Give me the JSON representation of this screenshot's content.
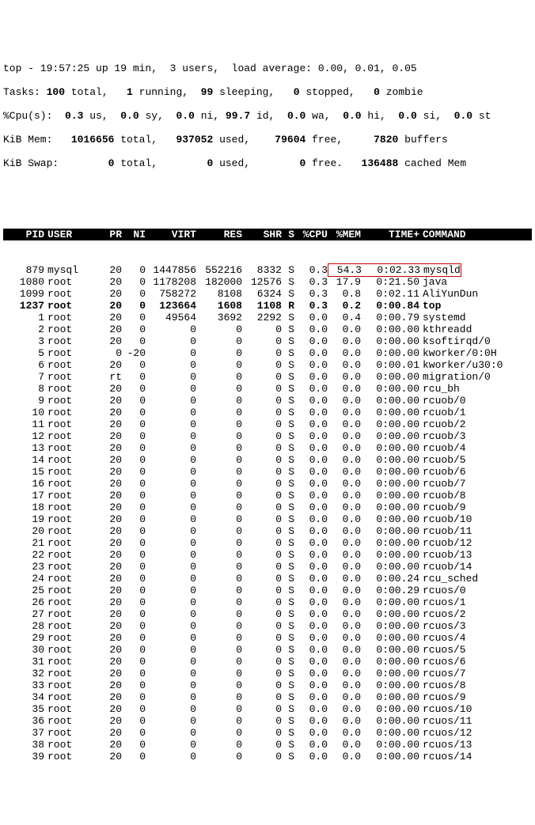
{
  "summary": {
    "line1_a": "top - 19:57:25 up 19 min,  3 users,  load average: 0.00, 0.01, 0.05",
    "tasks_label": "Tasks:",
    "tasks_total": " 100 ",
    "tasks_total_l": "total,   ",
    "tasks_run": "1 ",
    "tasks_run_l": "running,  ",
    "tasks_sleep": "99 ",
    "tasks_sleep_l": "sleeping,   ",
    "tasks_stop": "0 ",
    "tasks_stop_l": "stopped,   ",
    "tasks_zomb": "0 ",
    "tasks_zomb_l": "zombie",
    "cpu_label": "%Cpu(s):  ",
    "cpu_us": "0.3 ",
    "cpu_us_l": "us,  ",
    "cpu_sy": "0.0 ",
    "cpu_sy_l": "sy,  ",
    "cpu_ni": "0.0 ",
    "cpu_ni_l": "ni, ",
    "cpu_id": "99.7 ",
    "cpu_id_l": "id,  ",
    "cpu_wa": "0.0 ",
    "cpu_wa_l": "wa,  ",
    "cpu_hi": "0.0 ",
    "cpu_hi_l": "hi,  ",
    "cpu_si": "0.0 ",
    "cpu_si_l": "si,  ",
    "cpu_st": "0.0 ",
    "cpu_st_l": "st",
    "mem_label": "KiB Mem:   ",
    "mem_total": "1016656 ",
    "mem_total_l": "total,   ",
    "mem_used": "937052 ",
    "mem_used_l": "used,    ",
    "mem_free": "79604 ",
    "mem_free_l": "free,     ",
    "mem_buf": "7820 ",
    "mem_buf_l": "buffers",
    "swap_label": "KiB Swap:        ",
    "swap_total": "0 ",
    "swap_total_l": "total,        ",
    "swap_used": "0 ",
    "swap_used_l": "used,        ",
    "swap_free": "0 ",
    "swap_free_l": "free.   ",
    "swap_cache": "136488 ",
    "swap_cache_l": "cached Mem"
  },
  "headers": {
    "pid": "PID",
    "user": "USER",
    "pr": "PR",
    "ni": "NI",
    "virt": "VIRT",
    "res": "RES",
    "shr": "SHR",
    "s": "S",
    "cpu": "%CPU",
    "mem": "%MEM",
    "time": "TIME+",
    "cmd": "COMMAND"
  },
  "highlight_row_index": 0,
  "processes": [
    {
      "pid": "879",
      "user": "mysql",
      "pr": "20",
      "ni": "0",
      "virt": "1447856",
      "res": "552216",
      "shr": "8332",
      "s": "S",
      "cpu": "0.3",
      "mem": "54.3",
      "time": "0:02.33",
      "cmd": "mysqld"
    },
    {
      "pid": "1080",
      "user": "root",
      "pr": "20",
      "ni": "0",
      "virt": "1178208",
      "res": "182000",
      "shr": "12576",
      "s": "S",
      "cpu": "0.3",
      "mem": "17.9",
      "time": "0:21.50",
      "cmd": "java"
    },
    {
      "pid": "1099",
      "user": "root",
      "pr": "20",
      "ni": "0",
      "virt": "758272",
      "res": "8108",
      "shr": "6324",
      "s": "S",
      "cpu": "0.3",
      "mem": "0.8",
      "time": "0:02.11",
      "cmd": "AliYunDun"
    },
    {
      "pid": "1237",
      "user": "root",
      "pr": "20",
      "ni": "0",
      "virt": "123664",
      "res": "1608",
      "shr": "1108",
      "s": "R",
      "cpu": "0.3",
      "mem": "0.2",
      "time": "0:00.84",
      "cmd": "top"
    },
    {
      "pid": "1",
      "user": "root",
      "pr": "20",
      "ni": "0",
      "virt": "49564",
      "res": "3692",
      "shr": "2292",
      "s": "S",
      "cpu": "0.0",
      "mem": "0.4",
      "time": "0:00.79",
      "cmd": "systemd"
    },
    {
      "pid": "2",
      "user": "root",
      "pr": "20",
      "ni": "0",
      "virt": "0",
      "res": "0",
      "shr": "0",
      "s": "S",
      "cpu": "0.0",
      "mem": "0.0",
      "time": "0:00.00",
      "cmd": "kthreadd"
    },
    {
      "pid": "3",
      "user": "root",
      "pr": "20",
      "ni": "0",
      "virt": "0",
      "res": "0",
      "shr": "0",
      "s": "S",
      "cpu": "0.0",
      "mem": "0.0",
      "time": "0:00.00",
      "cmd": "ksoftirqd/0"
    },
    {
      "pid": "5",
      "user": "root",
      "pr": "0",
      "ni": "-20",
      "virt": "0",
      "res": "0",
      "shr": "0",
      "s": "S",
      "cpu": "0.0",
      "mem": "0.0",
      "time": "0:00.00",
      "cmd": "kworker/0:0H"
    },
    {
      "pid": "6",
      "user": "root",
      "pr": "20",
      "ni": "0",
      "virt": "0",
      "res": "0",
      "shr": "0",
      "s": "S",
      "cpu": "0.0",
      "mem": "0.0",
      "time": "0:00.01",
      "cmd": "kworker/u30:0"
    },
    {
      "pid": "7",
      "user": "root",
      "pr": "rt",
      "ni": "0",
      "virt": "0",
      "res": "0",
      "shr": "0",
      "s": "S",
      "cpu": "0.0",
      "mem": "0.0",
      "time": "0:00.00",
      "cmd": "migration/0"
    },
    {
      "pid": "8",
      "user": "root",
      "pr": "20",
      "ni": "0",
      "virt": "0",
      "res": "0",
      "shr": "0",
      "s": "S",
      "cpu": "0.0",
      "mem": "0.0",
      "time": "0:00.00",
      "cmd": "rcu_bh"
    },
    {
      "pid": "9",
      "user": "root",
      "pr": "20",
      "ni": "0",
      "virt": "0",
      "res": "0",
      "shr": "0",
      "s": "S",
      "cpu": "0.0",
      "mem": "0.0",
      "time": "0:00.00",
      "cmd": "rcuob/0"
    },
    {
      "pid": "10",
      "user": "root",
      "pr": "20",
      "ni": "0",
      "virt": "0",
      "res": "0",
      "shr": "0",
      "s": "S",
      "cpu": "0.0",
      "mem": "0.0",
      "time": "0:00.00",
      "cmd": "rcuob/1"
    },
    {
      "pid": "11",
      "user": "root",
      "pr": "20",
      "ni": "0",
      "virt": "0",
      "res": "0",
      "shr": "0",
      "s": "S",
      "cpu": "0.0",
      "mem": "0.0",
      "time": "0:00.00",
      "cmd": "rcuob/2"
    },
    {
      "pid": "12",
      "user": "root",
      "pr": "20",
      "ni": "0",
      "virt": "0",
      "res": "0",
      "shr": "0",
      "s": "S",
      "cpu": "0.0",
      "mem": "0.0",
      "time": "0:00.00",
      "cmd": "rcuob/3"
    },
    {
      "pid": "13",
      "user": "root",
      "pr": "20",
      "ni": "0",
      "virt": "0",
      "res": "0",
      "shr": "0",
      "s": "S",
      "cpu": "0.0",
      "mem": "0.0",
      "time": "0:00.00",
      "cmd": "rcuob/4"
    },
    {
      "pid": "14",
      "user": "root",
      "pr": "20",
      "ni": "0",
      "virt": "0",
      "res": "0",
      "shr": "0",
      "s": "S",
      "cpu": "0.0",
      "mem": "0.0",
      "time": "0:00.00",
      "cmd": "rcuob/5"
    },
    {
      "pid": "15",
      "user": "root",
      "pr": "20",
      "ni": "0",
      "virt": "0",
      "res": "0",
      "shr": "0",
      "s": "S",
      "cpu": "0.0",
      "mem": "0.0",
      "time": "0:00.00",
      "cmd": "rcuob/6"
    },
    {
      "pid": "16",
      "user": "root",
      "pr": "20",
      "ni": "0",
      "virt": "0",
      "res": "0",
      "shr": "0",
      "s": "S",
      "cpu": "0.0",
      "mem": "0.0",
      "time": "0:00.00",
      "cmd": "rcuob/7"
    },
    {
      "pid": "17",
      "user": "root",
      "pr": "20",
      "ni": "0",
      "virt": "0",
      "res": "0",
      "shr": "0",
      "s": "S",
      "cpu": "0.0",
      "mem": "0.0",
      "time": "0:00.00",
      "cmd": "rcuob/8"
    },
    {
      "pid": "18",
      "user": "root",
      "pr": "20",
      "ni": "0",
      "virt": "0",
      "res": "0",
      "shr": "0",
      "s": "S",
      "cpu": "0.0",
      "mem": "0.0",
      "time": "0:00.00",
      "cmd": "rcuob/9"
    },
    {
      "pid": "19",
      "user": "root",
      "pr": "20",
      "ni": "0",
      "virt": "0",
      "res": "0",
      "shr": "0",
      "s": "S",
      "cpu": "0.0",
      "mem": "0.0",
      "time": "0:00.00",
      "cmd": "rcuob/10"
    },
    {
      "pid": "20",
      "user": "root",
      "pr": "20",
      "ni": "0",
      "virt": "0",
      "res": "0",
      "shr": "0",
      "s": "S",
      "cpu": "0.0",
      "mem": "0.0",
      "time": "0:00.00",
      "cmd": "rcuob/11"
    },
    {
      "pid": "21",
      "user": "root",
      "pr": "20",
      "ni": "0",
      "virt": "0",
      "res": "0",
      "shr": "0",
      "s": "S",
      "cpu": "0.0",
      "mem": "0.0",
      "time": "0:00.00",
      "cmd": "rcuob/12"
    },
    {
      "pid": "22",
      "user": "root",
      "pr": "20",
      "ni": "0",
      "virt": "0",
      "res": "0",
      "shr": "0",
      "s": "S",
      "cpu": "0.0",
      "mem": "0.0",
      "time": "0:00.00",
      "cmd": "rcuob/13"
    },
    {
      "pid": "23",
      "user": "root",
      "pr": "20",
      "ni": "0",
      "virt": "0",
      "res": "0",
      "shr": "0",
      "s": "S",
      "cpu": "0.0",
      "mem": "0.0",
      "time": "0:00.00",
      "cmd": "rcuob/14"
    },
    {
      "pid": "24",
      "user": "root",
      "pr": "20",
      "ni": "0",
      "virt": "0",
      "res": "0",
      "shr": "0",
      "s": "S",
      "cpu": "0.0",
      "mem": "0.0",
      "time": "0:00.24",
      "cmd": "rcu_sched"
    },
    {
      "pid": "25",
      "user": "root",
      "pr": "20",
      "ni": "0",
      "virt": "0",
      "res": "0",
      "shr": "0",
      "s": "S",
      "cpu": "0.0",
      "mem": "0.0",
      "time": "0:00.29",
      "cmd": "rcuos/0"
    },
    {
      "pid": "26",
      "user": "root",
      "pr": "20",
      "ni": "0",
      "virt": "0",
      "res": "0",
      "shr": "0",
      "s": "S",
      "cpu": "0.0",
      "mem": "0.0",
      "time": "0:00.00",
      "cmd": "rcuos/1"
    },
    {
      "pid": "27",
      "user": "root",
      "pr": "20",
      "ni": "0",
      "virt": "0",
      "res": "0",
      "shr": "0",
      "s": "S",
      "cpu": "0.0",
      "mem": "0.0",
      "time": "0:00.00",
      "cmd": "rcuos/2"
    },
    {
      "pid": "28",
      "user": "root",
      "pr": "20",
      "ni": "0",
      "virt": "0",
      "res": "0",
      "shr": "0",
      "s": "S",
      "cpu": "0.0",
      "mem": "0.0",
      "time": "0:00.00",
      "cmd": "rcuos/3"
    },
    {
      "pid": "29",
      "user": "root",
      "pr": "20",
      "ni": "0",
      "virt": "0",
      "res": "0",
      "shr": "0",
      "s": "S",
      "cpu": "0.0",
      "mem": "0.0",
      "time": "0:00.00",
      "cmd": "rcuos/4"
    },
    {
      "pid": "30",
      "user": "root",
      "pr": "20",
      "ni": "0",
      "virt": "0",
      "res": "0",
      "shr": "0",
      "s": "S",
      "cpu": "0.0",
      "mem": "0.0",
      "time": "0:00.00",
      "cmd": "rcuos/5"
    },
    {
      "pid": "31",
      "user": "root",
      "pr": "20",
      "ni": "0",
      "virt": "0",
      "res": "0",
      "shr": "0",
      "s": "S",
      "cpu": "0.0",
      "mem": "0.0",
      "time": "0:00.00",
      "cmd": "rcuos/6"
    },
    {
      "pid": "32",
      "user": "root",
      "pr": "20",
      "ni": "0",
      "virt": "0",
      "res": "0",
      "shr": "0",
      "s": "S",
      "cpu": "0.0",
      "mem": "0.0",
      "time": "0:00.00",
      "cmd": "rcuos/7"
    },
    {
      "pid": "33",
      "user": "root",
      "pr": "20",
      "ni": "0",
      "virt": "0",
      "res": "0",
      "shr": "0",
      "s": "S",
      "cpu": "0.0",
      "mem": "0.0",
      "time": "0:00.00",
      "cmd": "rcuos/8"
    },
    {
      "pid": "34",
      "user": "root",
      "pr": "20",
      "ni": "0",
      "virt": "0",
      "res": "0",
      "shr": "0",
      "s": "S",
      "cpu": "0.0",
      "mem": "0.0",
      "time": "0:00.00",
      "cmd": "rcuos/9"
    },
    {
      "pid": "35",
      "user": "root",
      "pr": "20",
      "ni": "0",
      "virt": "0",
      "res": "0",
      "shr": "0",
      "s": "S",
      "cpu": "0.0",
      "mem": "0.0",
      "time": "0:00.00",
      "cmd": "rcuos/10"
    },
    {
      "pid": "36",
      "user": "root",
      "pr": "20",
      "ni": "0",
      "virt": "0",
      "res": "0",
      "shr": "0",
      "s": "S",
      "cpu": "0.0",
      "mem": "0.0",
      "time": "0:00.00",
      "cmd": "rcuos/11"
    },
    {
      "pid": "37",
      "user": "root",
      "pr": "20",
      "ni": "0",
      "virt": "0",
      "res": "0",
      "shr": "0",
      "s": "S",
      "cpu": "0.0",
      "mem": "0.0",
      "time": "0:00.00",
      "cmd": "rcuos/12"
    },
    {
      "pid": "38",
      "user": "root",
      "pr": "20",
      "ni": "0",
      "virt": "0",
      "res": "0",
      "shr": "0",
      "s": "S",
      "cpu": "0.0",
      "mem": "0.0",
      "time": "0:00.00",
      "cmd": "rcuos/13"
    },
    {
      "pid": "39",
      "user": "root",
      "pr": "20",
      "ni": "0",
      "virt": "0",
      "res": "0",
      "shr": "0",
      "s": "S",
      "cpu": "0.0",
      "mem": "0.0",
      "time": "0:00.00",
      "cmd": "rcuos/14"
    }
  ]
}
